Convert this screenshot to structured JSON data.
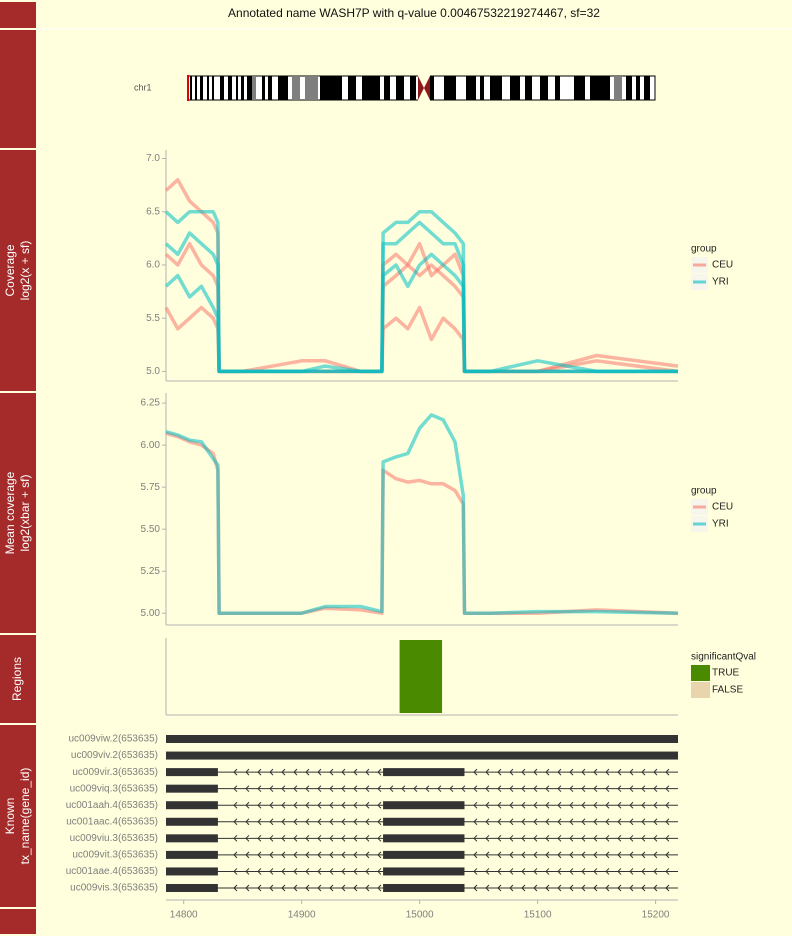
{
  "title": "Annotated name WASH7P with q-value 0.00467532219274467, sf=32",
  "x_axis": {
    "xlim": [
      14785,
      15219
    ],
    "xticks": [
      14800,
      14900,
      15000,
      15100,
      15200
    ]
  },
  "chart_data": [
    {
      "type": "ideogram",
      "label": "chr1"
    },
    {
      "type": "line",
      "strip": [
        "Coverage",
        "log2(x + sf)"
      ],
      "ylim": [
        4.91,
        7.08
      ],
      "yticks": [
        {
          "value": 5,
          "label": "5.0"
        },
        {
          "value": 5.5,
          "label": "5.5"
        },
        {
          "value": 6,
          "label": "6.0"
        },
        {
          "value": 6.5,
          "label": "6.5"
        },
        {
          "value": 7,
          "label": "7.0"
        }
      ],
      "legend_title": "group",
      "x": [
        14785,
        14795,
        14805,
        14815,
        14825,
        14829,
        14830,
        14850,
        14900,
        14920,
        14950,
        14968,
        14969,
        14980,
        14990,
        15000,
        15010,
        15020,
        15030,
        15037,
        15038,
        15060,
        15100,
        15150,
        15219
      ],
      "series": [
        {
          "name": "CEU",
          "color": "#f8766d",
          "samples": [
            [
              6.7,
              6.8,
              6.6,
              6.5,
              6.4,
              6.3,
              5.0,
              5.0,
              5.0,
              5.0,
              5.0,
              5.0,
              6.0,
              6.1,
              6.0,
              5.9,
              6.0,
              5.9,
              5.8,
              5.7,
              5.0,
              5.0,
              5.0,
              5.15,
              5.05
            ],
            [
              5.6,
              5.4,
              5.5,
              5.6,
              5.5,
              5.4,
              5.0,
              5.0,
              5.1,
              5.1,
              5.0,
              5.0,
              5.4,
              5.5,
              5.4,
              5.6,
              5.3,
              5.5,
              5.4,
              5.3,
              5.0,
              5.0,
              5.0,
              5.0,
              5.0
            ],
            [
              6.1,
              6.0,
              6.2,
              6.0,
              5.9,
              5.8,
              5.0,
              5.0,
              5.0,
              5.0,
              5.0,
              5.0,
              5.8,
              5.9,
              6.0,
              6.2,
              5.9,
              6.0,
              6.1,
              5.9,
              5.0,
              5.0,
              5.0,
              5.1,
              5.0
            ]
          ]
        },
        {
          "name": "YRI",
          "color": "#00bfc4",
          "samples": [
            [
              6.5,
              6.4,
              6.5,
              6.5,
              6.5,
              6.4,
              5.0,
              5.0,
              5.0,
              5.0,
              5.0,
              5.0,
              6.3,
              6.4,
              6.4,
              6.5,
              6.5,
              6.4,
              6.3,
              6.2,
              5.0,
              5.0,
              5.1,
              5.0,
              5.0
            ],
            [
              5.8,
              5.9,
              5.7,
              5.8,
              5.6,
              5.5,
              5.0,
              5.0,
              5.0,
              5.0,
              5.0,
              5.0,
              5.9,
              6.0,
              5.8,
              6.0,
              6.1,
              6.0,
              5.9,
              5.8,
              5.0,
              5.0,
              5.0,
              5.0,
              5.0
            ],
            [
              6.2,
              6.1,
              6.3,
              6.2,
              6.1,
              6.0,
              5.0,
              5.0,
              5.0,
              5.05,
              5.0,
              5.0,
              6.2,
              6.2,
              6.3,
              6.4,
              6.3,
              6.2,
              6.2,
              6.0,
              5.0,
              5.0,
              5.0,
              5.0,
              5.0
            ]
          ]
        }
      ]
    },
    {
      "type": "line",
      "strip": [
        "Mean coverage",
        "log2(xbar + sf)"
      ],
      "ylim": [
        4.93,
        6.31
      ],
      "yticks": [
        {
          "value": 5,
          "label": "5.00"
        },
        {
          "value": 5.25,
          "label": "5.25"
        },
        {
          "value": 5.5,
          "label": "5.50"
        },
        {
          "value": 5.75,
          "label": "5.75"
        },
        {
          "value": 6,
          "label": "6.00"
        },
        {
          "value": 6.25,
          "label": "6.25"
        }
      ],
      "legend_title": "group",
      "x": [
        14785,
        14795,
        14805,
        14815,
        14825,
        14829,
        14830,
        14850,
        14900,
        14920,
        14950,
        14968,
        14969,
        14980,
        14990,
        15000,
        15010,
        15020,
        15030,
        15037,
        15038,
        15060,
        15100,
        15150,
        15219
      ],
      "series": [
        {
          "name": "CEU",
          "color": "#f8766d",
          "values": [
            6.07,
            6.05,
            6.02,
            6.0,
            5.95,
            5.85,
            5.0,
            5.0,
            5.0,
            5.03,
            5.02,
            5.0,
            5.85,
            5.8,
            5.78,
            5.79,
            5.77,
            5.77,
            5.73,
            5.65,
            5.0,
            5.0,
            5.0,
            5.02,
            5.0
          ]
        },
        {
          "name": "YRI",
          "color": "#00bfc4",
          "values": [
            6.08,
            6.06,
            6.03,
            6.02,
            5.92,
            5.88,
            5.0,
            5.0,
            5.0,
            5.04,
            5.04,
            5.01,
            5.9,
            5.93,
            5.95,
            6.1,
            6.18,
            6.15,
            6.02,
            5.7,
            5.0,
            5.0,
            5.01,
            5.01,
            5.0
          ]
        }
      ]
    },
    {
      "type": "region",
      "strip": [
        "Regions"
      ],
      "legend_title": "significantQval",
      "series": [
        {
          "name": "TRUE",
          "color": "#4a8a00",
          "regions": [
            [
              14983,
              15019
            ]
          ]
        },
        {
          "name": "FALSE",
          "color": "#e8d4ad",
          "regions": []
        }
      ]
    },
    {
      "type": "gene",
      "strip": [
        "Known",
        "tx_name(gene_id)"
      ],
      "transcripts": [
        {
          "name": "uc009viw.2(653635)",
          "exons": [
            [
              14785,
              15219
            ]
          ]
        },
        {
          "name": "uc009viv.2(653635)",
          "exons": [
            [
              14785,
              15219
            ]
          ]
        },
        {
          "name": "uc009vir.3(653635)",
          "exons": [
            [
              14785,
              14829
            ],
            [
              14969,
              15038
            ]
          ]
        },
        {
          "name": "uc009viq.3(653635)",
          "exons": [
            [
              14785,
              14829
            ]
          ]
        },
        {
          "name": "uc001aah.4(653635)",
          "exons": [
            [
              14785,
              14829
            ],
            [
              14969,
              15038
            ]
          ]
        },
        {
          "name": "uc001aac.4(653635)",
          "exons": [
            [
              14785,
              14829
            ],
            [
              14969,
              15038
            ]
          ]
        },
        {
          "name": "uc009viu.3(653635)",
          "exons": [
            [
              14785,
              14829
            ],
            [
              14969,
              15038
            ]
          ]
        },
        {
          "name": "uc009vit.3(653635)",
          "exons": [
            [
              14785,
              14829
            ],
            [
              14969,
              15038
            ]
          ]
        },
        {
          "name": "uc001aae.4(653635)",
          "exons": [
            [
              14785,
              14829
            ],
            [
              14969,
              15038
            ]
          ]
        },
        {
          "name": "uc009vis.3(653635)",
          "exons": [
            [
              14785,
              14829
            ],
            [
              14969,
              15038
            ]
          ]
        }
      ]
    }
  ]
}
